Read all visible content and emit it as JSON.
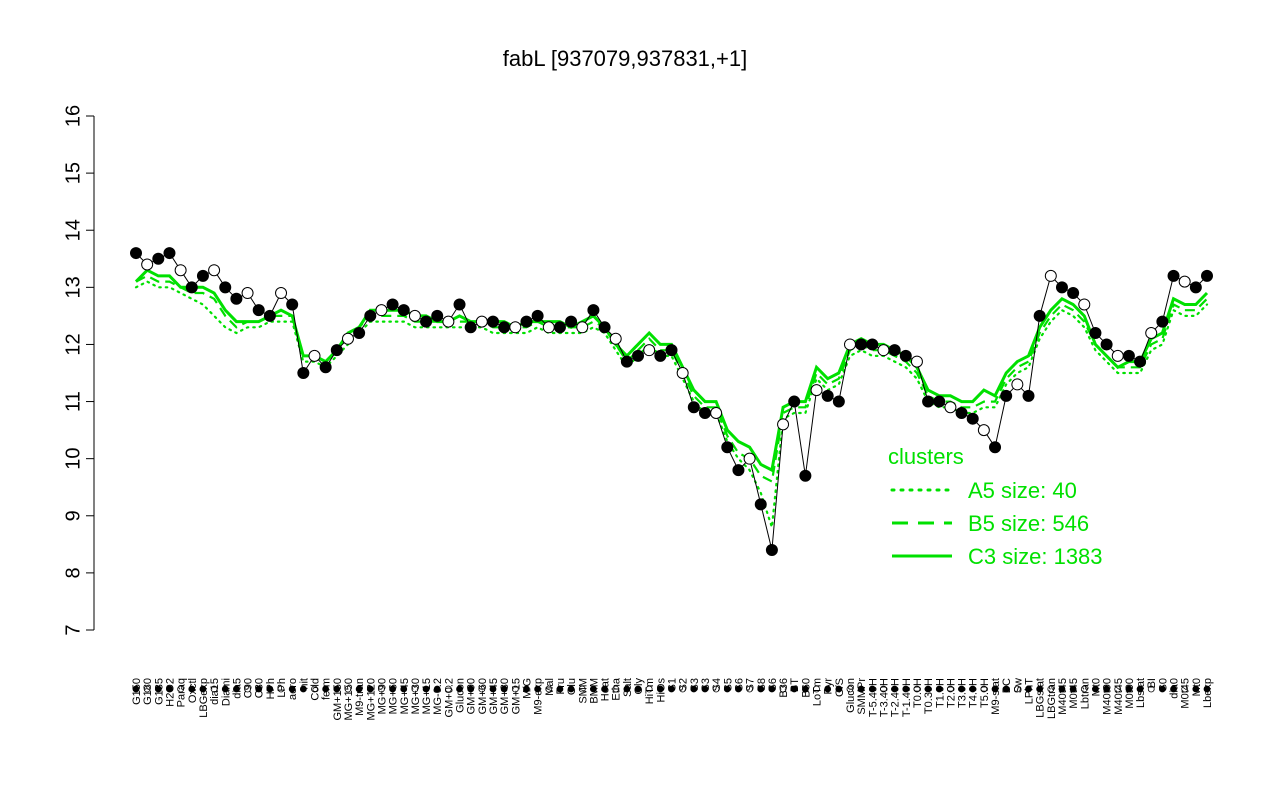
{
  "chart_data": {
    "type": "line",
    "title": "fabL [937079,937831,+1]",
    "xlabel": "",
    "ylabel": "",
    "ylim": [
      7,
      16
    ],
    "yticks": [
      7,
      8,
      9,
      10,
      11,
      12,
      13,
      14,
      15,
      16
    ],
    "grid": false,
    "legend": {
      "title": "clusters",
      "placement": "bottom-right",
      "entries": [
        {
          "label": "A5 size: 40",
          "style": "dotted"
        },
        {
          "label": "B5 size: 546",
          "style": "dashed"
        },
        {
          "label": "C3 size: 1383",
          "style": "solid"
        }
      ]
    },
    "colors": {
      "cluster_line": "#00e000",
      "points": "#000000"
    },
    "x_labels": [
      "G150",
      "G180",
      "G135",
      "H2O2",
      "Paraq",
      "Oxctl",
      "LBGexp",
      "dia15",
      "Diami",
      "dia5",
      "C90",
      "C30",
      "HPh",
      "LPh",
      "aero",
      "nit",
      "Cold",
      "ferm",
      "GM+150",
      "MG+150",
      "M9-tran",
      "MG+120",
      "MG+90",
      "MG+60",
      "MG+45",
      "MG+30",
      "MG+15",
      "MG-0.2",
      "GM+0.2",
      "Glucon",
      "GM+90",
      "GM+60",
      "GM+45",
      "GM+30",
      "GM+15",
      "M/G",
      "M9-exp",
      "Mal",
      "Fru",
      "Glu",
      "SMM",
      "BMM",
      "Heat",
      "Etha",
      "Salt",
      "Gly",
      "HiTm",
      "HiOs",
      "S1",
      "S2",
      "S3",
      "S3",
      "S4",
      "S5",
      "S6",
      "S7",
      "S8",
      "S6",
      "B36",
      "BT",
      "B60",
      "LoTm",
      "Pyr",
      "G/S",
      "Glucon",
      "SMMPr",
      "T-5.40H",
      "T-3.40H",
      "T-2.40H",
      "T-1.40H",
      "T0.0H",
      "T0.30H",
      "T1.0H",
      "T2.0H",
      "T3.0H",
      "T4.0H",
      "T5.0H",
      "M9-stat",
      "BC",
      "Sw",
      "LPhT",
      "LBGstat",
      "LBGtran",
      "M40t45",
      "M0t45",
      "Lbtran",
      "Mt0",
      "M40t90",
      "M40t45",
      "M0t90",
      "Lbstat",
      "BI",
      "S0",
      "dia0",
      "M0t45",
      "Mt0",
      "Lbexp"
    ],
    "x_visible_labels": [
      "G150",
      "G180",
      "G135",
      "H2O2",
      "Paraq",
      "Oxctl",
      "LBGexp",
      "dia15",
      "Diami",
      "dia5",
      "C90",
      "C30",
      "HPh",
      "LPh",
      "aero",
      "nit",
      "Cold",
      "ferm",
      "GM+150",
      "MG+150",
      "M9-tran",
      "MG+120",
      "MG+90",
      "MG+60",
      "MG+45",
      "MG+30",
      "MG+15",
      "MG-0.2",
      "GM+0.2",
      "Glucon",
      "GM+90",
      "GM+60",
      "GM+45",
      "GM+30",
      "GM+15",
      "M/G",
      "M9-exp",
      "Mal",
      "Fru",
      "Glu",
      "SMM",
      "BMM",
      "Heat",
      "Etha",
      "Salt",
      "Gly",
      "HiTm",
      "HiOs",
      "S1",
      "S2",
      "S3",
      "S3",
      "S4",
      "S5",
      "S6",
      "S7",
      "S8",
      "S6",
      "B36",
      "BT",
      "B60",
      "LoTm",
      "Pyr",
      "G/S",
      "Glucon",
      "SMMPr",
      "T-5.40H",
      "T-3.40H",
      "T-2.40H",
      "T-1.40H",
      "T0.0H",
      "T0.30H",
      "T1.0H",
      "T2.0H",
      "T3.0H",
      "T4.0H",
      "T5.0H",
      "M9-stat",
      "BC",
      "Sw",
      "LPhT",
      "LBGstat",
      "LBGtran",
      "M40t45",
      "M0t45",
      "Lbtran",
      "Mt0",
      "M40t90",
      "M40t45",
      "M0t90",
      "Lbstat",
      "BI",
      "S0",
      "dia0",
      "M0t45",
      "Mt0",
      "Lbexp"
    ],
    "series": [
      {
        "style": "points",
        "values": [
          13.6,
          13.4,
          13.5,
          13.6,
          13.3,
          13.0,
          13.2,
          13.3,
          13.0,
          12.8,
          12.9,
          12.6,
          12.5,
          12.9,
          12.7,
          11.5,
          11.8,
          11.6,
          11.9,
          12.1,
          12.2,
          12.5,
          12.6,
          12.7,
          12.6,
          12.5,
          12.4,
          12.5,
          12.4,
          12.7,
          12.3,
          12.4,
          12.4,
          12.3,
          12.3,
          12.4,
          12.5,
          12.3,
          12.3,
          12.4,
          12.3,
          12.6,
          12.3,
          12.1,
          11.7,
          11.8,
          11.9,
          11.8,
          11.9,
          11.5,
          10.9,
          10.8,
          10.8,
          10.2,
          9.8,
          10.0,
          9.2,
          8.4,
          10.6,
          11.0,
          9.7,
          11.2,
          11.1,
          11.0,
          12.0,
          12.0,
          12.0,
          11.9,
          11.9,
          11.8,
          11.7,
          11.0,
          11.0,
          10.9,
          10.8,
          10.7,
          10.5,
          10.2,
          11.1,
          11.3,
          11.1,
          12.5,
          13.2,
          13.0,
          12.9,
          12.7,
          12.2,
          12.0,
          11.8,
          11.8,
          11.7,
          12.2,
          12.4,
          13.2,
          13.1,
          13.0,
          13.2
        ]
      },
      {
        "name": "C3 size: 1383",
        "style": "solid",
        "values": [
          13.1,
          13.3,
          13.2,
          13.2,
          13.0,
          13.0,
          13.0,
          12.9,
          12.6,
          12.4,
          12.4,
          12.4,
          12.5,
          12.6,
          12.5,
          11.8,
          11.8,
          11.7,
          11.9,
          12.2,
          12.3,
          12.6,
          12.6,
          12.6,
          12.6,
          12.5,
          12.5,
          12.4,
          12.4,
          12.5,
          12.4,
          12.4,
          12.4,
          12.4,
          12.3,
          12.4,
          12.4,
          12.4,
          12.4,
          12.3,
          12.4,
          12.5,
          12.3,
          12.0,
          11.8,
          12.0,
          12.2,
          12.0,
          12.0,
          11.6,
          11.2,
          11.0,
          11.0,
          10.5,
          10.3,
          10.2,
          9.9,
          9.8,
          10.9,
          11.0,
          11.0,
          11.6,
          11.4,
          11.5,
          12.0,
          12.1,
          12.0,
          12.0,
          11.9,
          11.8,
          11.6,
          11.2,
          11.1,
          11.1,
          11.0,
          11.0,
          11.2,
          11.1,
          11.5,
          11.7,
          11.8,
          12.3,
          12.6,
          12.8,
          12.7,
          12.5,
          12.0,
          11.8,
          11.6,
          11.7,
          11.7,
          12.1,
          12.2,
          12.8,
          12.7,
          12.7,
          12.9
        ]
      },
      {
        "name": "B5 size: 546",
        "style": "dashed",
        "values": [
          13.1,
          13.2,
          13.1,
          13.1,
          13.0,
          12.9,
          12.9,
          12.8,
          12.5,
          12.3,
          12.4,
          12.4,
          12.5,
          12.5,
          12.5,
          11.8,
          11.8,
          11.7,
          11.9,
          12.1,
          12.3,
          12.5,
          12.5,
          12.5,
          12.5,
          12.4,
          12.4,
          12.4,
          12.4,
          12.4,
          12.4,
          12.4,
          12.3,
          12.3,
          12.3,
          12.3,
          12.4,
          12.3,
          12.3,
          12.3,
          12.3,
          12.4,
          12.3,
          12.0,
          11.7,
          11.9,
          12.1,
          11.9,
          11.9,
          11.5,
          11.1,
          10.9,
          10.9,
          10.4,
          10.1,
          10.0,
          9.7,
          9.6,
          10.8,
          10.9,
          10.9,
          11.5,
          11.3,
          11.4,
          11.9,
          12.0,
          11.9,
          11.9,
          11.8,
          11.7,
          11.5,
          11.1,
          11.0,
          11.0,
          10.9,
          10.9,
          11.0,
          11.0,
          11.4,
          11.6,
          11.7,
          12.2,
          12.5,
          12.7,
          12.6,
          12.4,
          12.0,
          11.8,
          11.6,
          11.6,
          11.6,
          12.0,
          12.1,
          12.7,
          12.6,
          12.6,
          12.8
        ]
      },
      {
        "name": "A5 size: 40",
        "style": "dotted",
        "values": [
          13.0,
          13.1,
          13.0,
          13.0,
          12.9,
          12.8,
          12.7,
          12.5,
          12.3,
          12.2,
          12.3,
          12.3,
          12.4,
          12.4,
          12.4,
          11.7,
          11.7,
          11.6,
          11.8,
          12.0,
          12.2,
          12.4,
          12.4,
          12.4,
          12.4,
          12.3,
          12.3,
          12.3,
          12.3,
          12.3,
          12.3,
          12.3,
          12.2,
          12.2,
          12.2,
          12.2,
          12.3,
          12.2,
          12.2,
          12.2,
          12.2,
          12.3,
          12.2,
          11.9,
          11.6,
          11.8,
          12.0,
          11.8,
          11.8,
          11.4,
          11.0,
          10.8,
          10.8,
          10.3,
          10.0,
          9.8,
          9.4,
          8.8,
          10.7,
          10.8,
          10.8,
          11.4,
          11.2,
          11.3,
          11.8,
          11.9,
          11.8,
          11.8,
          11.7,
          11.6,
          11.4,
          11.0,
          10.9,
          10.9,
          10.8,
          10.8,
          10.9,
          10.9,
          11.3,
          11.5,
          11.6,
          12.1,
          12.4,
          12.6,
          12.5,
          12.3,
          11.9,
          11.7,
          11.5,
          11.5,
          11.5,
          11.9,
          12.0,
          12.6,
          12.5,
          12.5,
          12.7
        ]
      }
    ]
  }
}
